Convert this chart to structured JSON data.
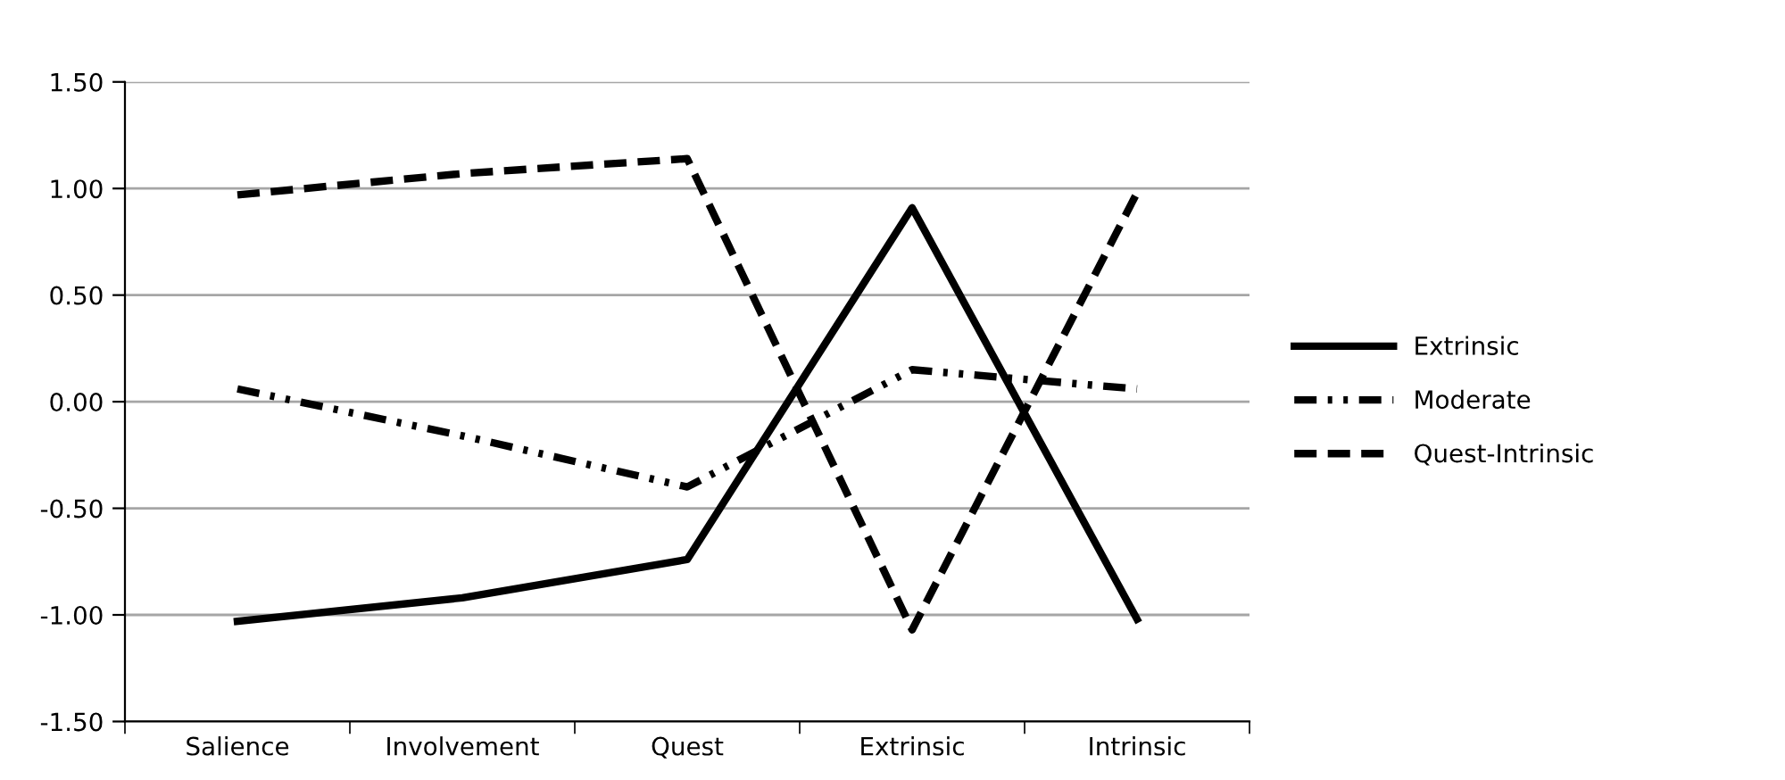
{
  "chart_data": {
    "type": "line",
    "categories": [
      "Salience",
      "Involvement",
      "Quest",
      "Extrinsic",
      "Intrinsic"
    ],
    "series": [
      {
        "name": "Extrinsic",
        "color": "#000000",
        "line_style": "solid",
        "values": [
          -1.03,
          -0.92,
          -0.74,
          0.91,
          -1.02
        ]
      },
      {
        "name": "Moderate",
        "color": "#000000",
        "line_style": "dashdot",
        "values": [
          0.06,
          -0.16,
          -0.4,
          0.15,
          0.06
        ]
      },
      {
        "name": "Quest-Intrinsic",
        "color": "#000000",
        "line_style": "dashed",
        "values": [
          0.97,
          1.07,
          1.14,
          -1.07,
          0.98
        ]
      }
    ],
    "ylim": [
      -1.5,
      1.5
    ],
    "yticks": [
      {
        "value": -1.5,
        "label": "-1.50"
      },
      {
        "value": -1.0,
        "label": "-1.00"
      },
      {
        "value": -0.5,
        "label": "-0.50"
      },
      {
        "value": 0,
        "label": "0.00"
      },
      {
        "value": 0.5,
        "label": "0.50"
      },
      {
        "value": 1.0,
        "label": "1.00"
      },
      {
        "value": 1.5,
        "label": "1.50"
      }
    ],
    "grid": "y",
    "legend": "right",
    "marker": "none"
  }
}
